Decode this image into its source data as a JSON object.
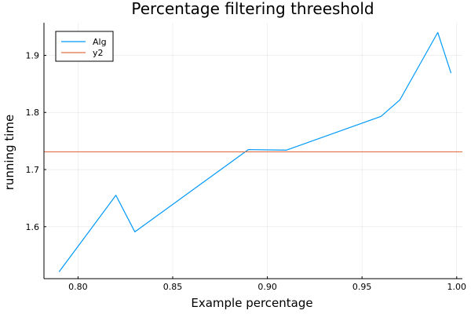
{
  "chart_data": {
    "type": "line",
    "title": "Percentage filtering threeshold",
    "xlabel": "Example percentage",
    "ylabel": "running time",
    "xlim": [
      0.782,
      1.003
    ],
    "ylim": [
      1.509,
      1.957
    ],
    "xticks": [
      0.8,
      0.85,
      0.9,
      0.95,
      1.0
    ],
    "xtick_labels": [
      "0.80",
      "0.85",
      "0.90",
      "0.95",
      "1.00"
    ],
    "yticks": [
      1.6,
      1.7,
      1.8,
      1.9
    ],
    "ytick_labels": [
      "1.6",
      "1.7",
      "1.8",
      "1.9"
    ],
    "grid": true,
    "legend_position": "top-left",
    "series": [
      {
        "name": "Alg",
        "color": "#009af9",
        "x": [
          0.79,
          0.82,
          0.83,
          0.89,
          0.91,
          0.96,
          0.97,
          0.99,
          0.997
        ],
        "y": [
          1.521,
          1.655,
          1.591,
          1.735,
          1.734,
          1.793,
          1.822,
          1.94,
          1.869
        ]
      },
      {
        "name": "y2",
        "color": "#e26f46",
        "constant": true,
        "y": 1.731
      }
    ]
  }
}
